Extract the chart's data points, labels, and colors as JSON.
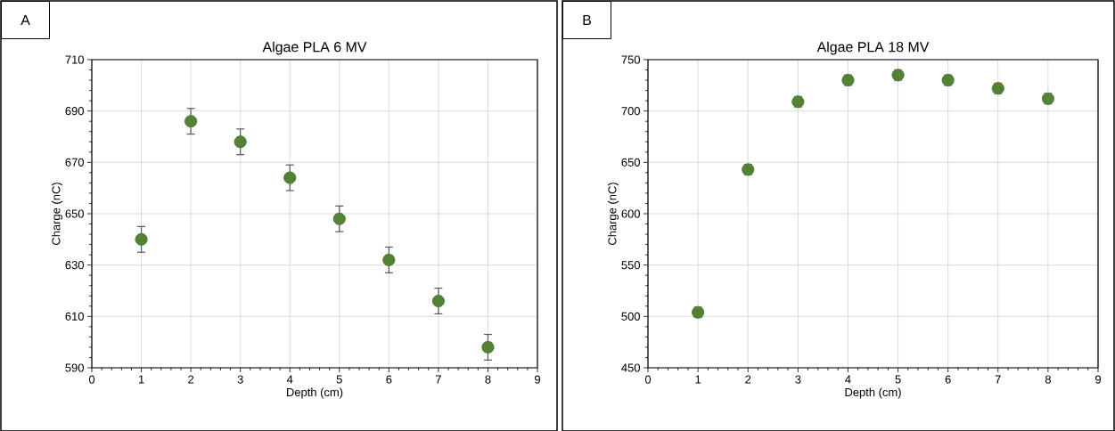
{
  "chart_data": [
    {
      "type": "scatter",
      "title": "Algae PLA 6 MV",
      "xlabel": "Depth (cm)",
      "ylabel": "Charge (nC)",
      "annotations": [
        "A"
      ],
      "x": [
        1,
        2,
        3,
        4,
        5,
        6,
        7,
        8
      ],
      "values": [
        640,
        686,
        678,
        664,
        648,
        632,
        616,
        598
      ],
      "errors": [
        5,
        5,
        5,
        5,
        5,
        5,
        5,
        5
      ],
      "color": "#538135",
      "marker": "circle",
      "grid": true,
      "xlim": [
        0,
        9
      ],
      "xticks": [
        0,
        1,
        2,
        3,
        4,
        5,
        6,
        7,
        8,
        9
      ],
      "ylim": [
        590,
        710
      ],
      "yticks": [
        590,
        610,
        630,
        650,
        670,
        690,
        710
      ]
    },
    {
      "type": "scatter",
      "title": "Algae PLA 18 MV",
      "xlabel": "Depth (cm)",
      "ylabel": "Charge (nC)",
      "annotations": [
        "B"
      ],
      "x": [
        1,
        2,
        3,
        4,
        5,
        6,
        7,
        8
      ],
      "values": [
        504,
        643,
        709,
        730,
        735,
        730,
        722,
        712
      ],
      "errors": [
        5,
        5,
        5,
        5,
        5,
        5,
        5,
        5
      ],
      "color": "#538135",
      "marker": "circle",
      "grid": true,
      "xlim": [
        0,
        9
      ],
      "xticks": [
        0,
        1,
        2,
        3,
        4,
        5,
        6,
        7,
        8,
        9
      ],
      "ylim": [
        450,
        750
      ],
      "yticks": [
        450,
        500,
        550,
        600,
        650,
        700,
        750
      ]
    }
  ]
}
